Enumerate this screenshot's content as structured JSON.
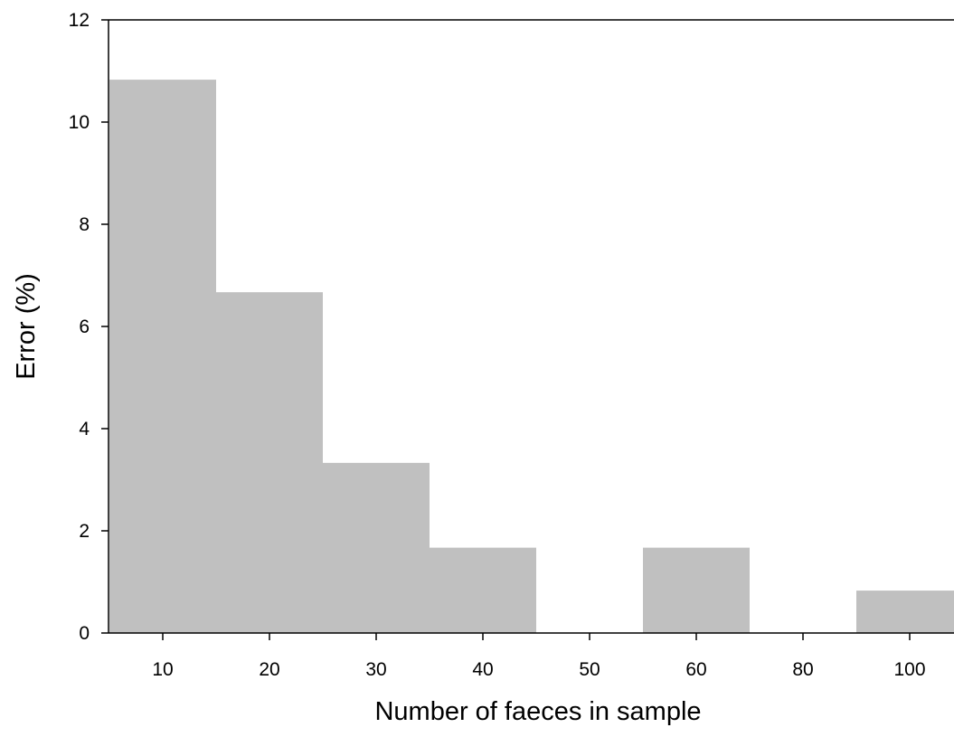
{
  "chart_data": {
    "type": "bar",
    "title": "",
    "xlabel": "Number of faeces in sample",
    "ylabel": "Error (%)",
    "categories": [
      "10",
      "20",
      "30",
      "40",
      "50",
      "60",
      "80",
      "100"
    ],
    "values": [
      10.83,
      6.67,
      3.33,
      1.67,
      0,
      1.67,
      0,
      0.83
    ],
    "ylim": [
      0,
      12
    ],
    "yticks": [
      "0",
      "2",
      "4",
      "6",
      "8",
      "10",
      "12"
    ],
    "bar_color": "#c0c0c0",
    "grid": false,
    "legend": "none"
  }
}
